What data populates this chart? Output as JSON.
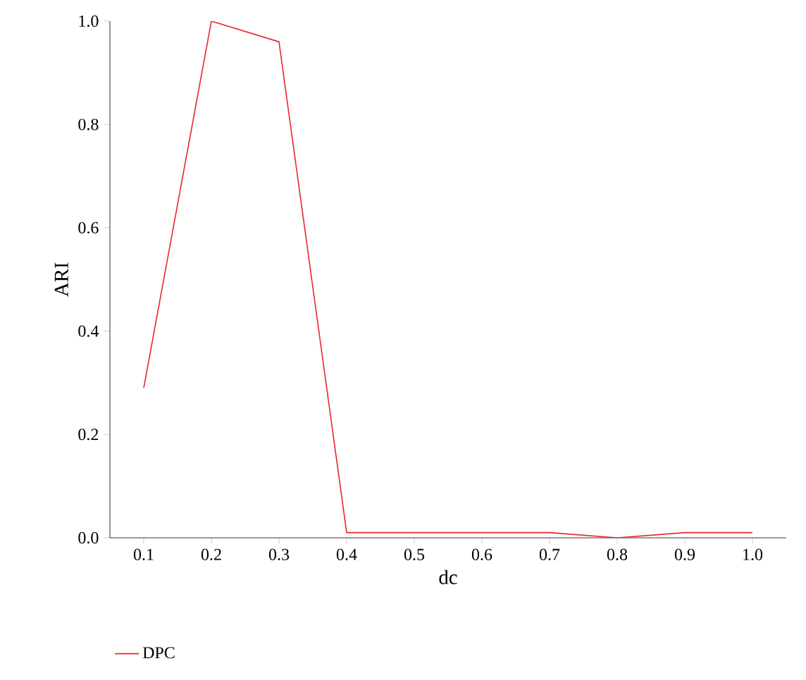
{
  "chart_data": {
    "type": "line",
    "xlabel": "dc",
    "ylabel": "ARI",
    "x": [
      0.1,
      0.2,
      0.3,
      0.4,
      0.5,
      0.6,
      0.7,
      0.8,
      0.9,
      1.0
    ],
    "series": [
      {
        "name": "DPC",
        "color": "#e8262c",
        "values": [
          0.29,
          1.0,
          0.96,
          0.01,
          0.01,
          0.01,
          0.01,
          0.0,
          0.01,
          0.01
        ]
      }
    ],
    "xlim": [
      0.05,
      1.05
    ],
    "ylim": [
      0,
      1.0
    ],
    "xticks": [
      0.1,
      0.2,
      0.3,
      0.4,
      0.5,
      0.6,
      0.7,
      0.8,
      0.9,
      {
        "value": 1.0,
        "label": "1.0"
      }
    ],
    "yticks": [
      {
        "value": 0,
        "label": "0.0"
      },
      0.2,
      0.4,
      0.6,
      0.8,
      {
        "value": 1.0,
        "label": "1.0"
      }
    ],
    "legend": "bottom left",
    "marker": "none",
    "line_style": "solid",
    "grid": false
  }
}
